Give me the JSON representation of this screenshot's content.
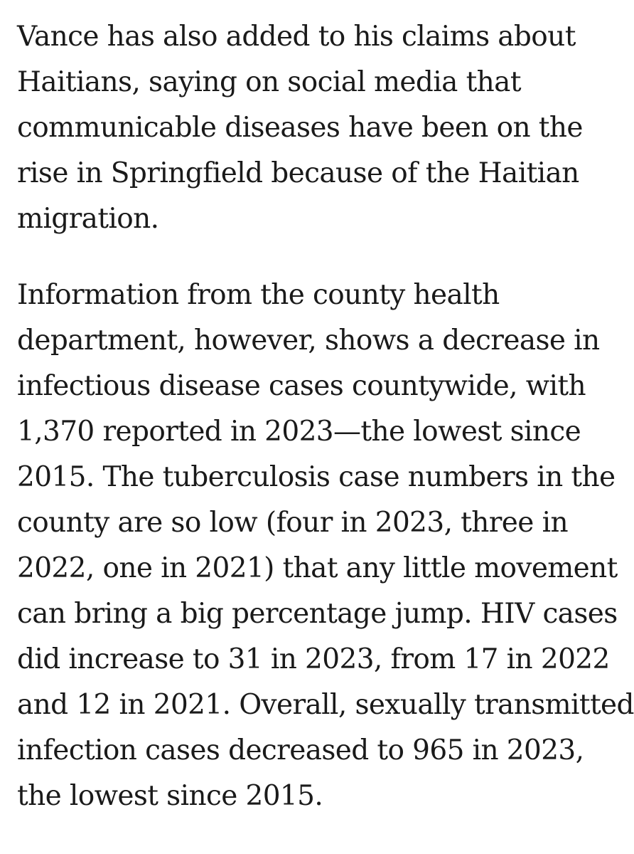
{
  "article": {
    "paragraphs": [
      {
        "lines": [
          "Vance has also added to his claims about",
          "Haitians, saying on social media that",
          "communicable diseases have been on the",
          "rise in Springfield because of the Haitian",
          "migration."
        ]
      },
      {
        "lines": [
          "Information from the county health",
          "department, however, shows a decrease in",
          "infectious disease cases countywide, with",
          "1,370 reported in 2023—the lowest since",
          "2015. The tuberculosis case numbers in the",
          "county are so low (four in 2023, three in",
          "2022, one in 2021) that any little movement",
          "can bring a big percentage jump. HIV cases",
          "did increase to 31 in 2023, from 17 in 2022",
          "and 12 in 2021. Overall, sexually transmitted",
          "infection cases decreased to 965 in 2023,",
          "the lowest since 2015."
        ]
      }
    ]
  }
}
